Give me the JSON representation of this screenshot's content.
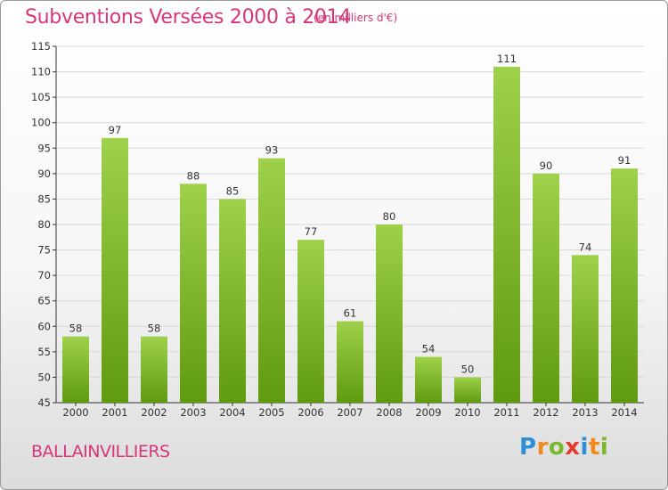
{
  "title": "Subventions Versées 2000 à 2014",
  "subtitle": "(en milliers d'€)",
  "commune": "BALLAINVILLIERS",
  "logo": {
    "text": "Proxiti",
    "letters": [
      {
        "ch": "P",
        "color": "#2e8fd6"
      },
      {
        "ch": "r",
        "color": "#f08a1c"
      },
      {
        "ch": "o",
        "color": "#7ab82d"
      },
      {
        "ch": "x",
        "color": "#e23c2e"
      },
      {
        "ch": "i",
        "color": "#2e8fd6"
      },
      {
        "ch": "t",
        "color": "#f08a1c"
      },
      {
        "ch": "i",
        "color": "#7ab82d"
      }
    ]
  },
  "colors": {
    "title": "#d8357a",
    "bar_light": "#9fd14b",
    "bar_dark": "#5f9a10",
    "grid": "#d9d9d9",
    "axis": "#333333"
  },
  "chart_data": {
    "type": "bar",
    "title": "Subventions Versées 2000 à 2014",
    "subtitle": "(en milliers d'€)",
    "xlabel": "",
    "ylabel": "",
    "categories": [
      "2000",
      "2001",
      "2002",
      "2003",
      "2004",
      "2005",
      "2006",
      "2007",
      "2008",
      "2009",
      "2010",
      "2011",
      "2012",
      "2013",
      "2014"
    ],
    "values": [
      58,
      97,
      58,
      88,
      85,
      93,
      77,
      61,
      80,
      54,
      50,
      111,
      90,
      74,
      91
    ],
    "ylim": [
      45,
      115
    ],
    "yticks": [
      45,
      50,
      55,
      60,
      65,
      70,
      75,
      80,
      85,
      90,
      95,
      100,
      105,
      110,
      115
    ],
    "grid": true,
    "data_labels": true
  }
}
